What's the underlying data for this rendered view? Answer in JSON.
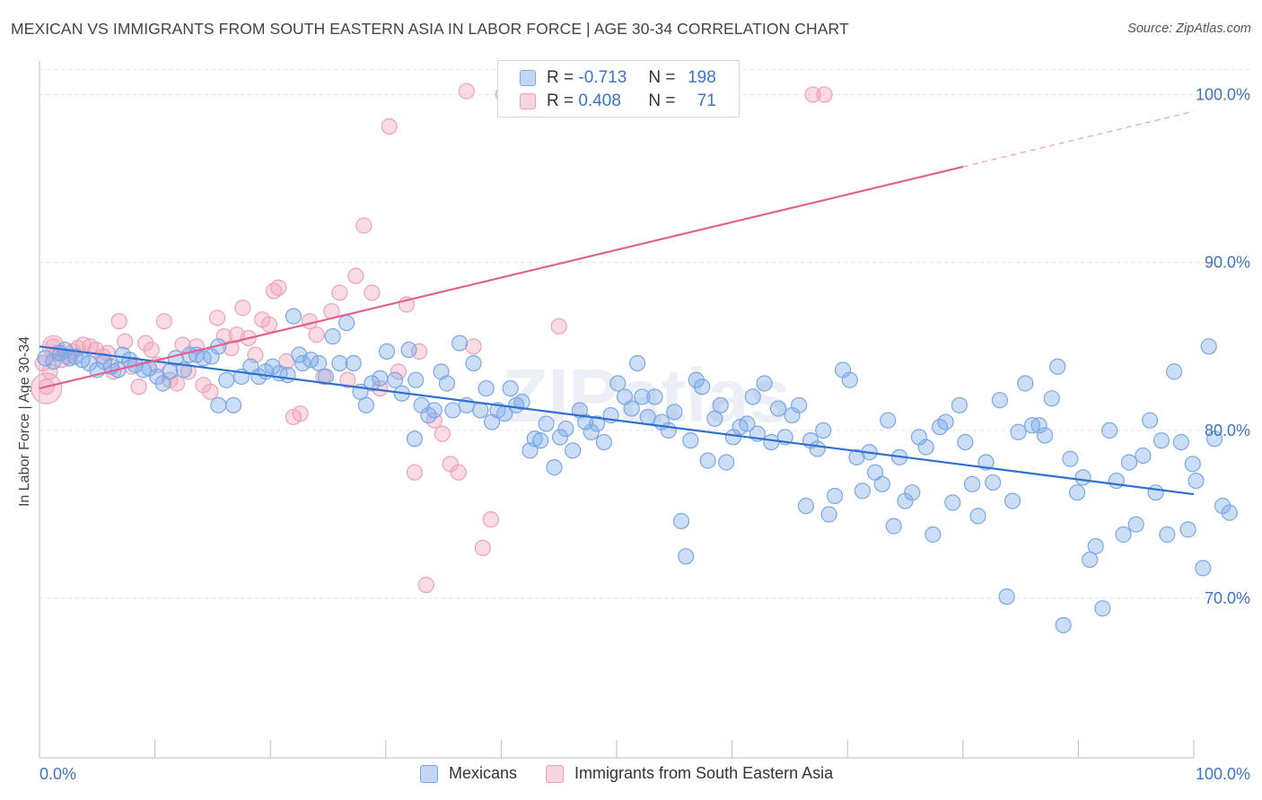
{
  "title": "MEXICAN VS IMMIGRANTS FROM SOUTH EASTERN ASIA IN LABOR FORCE | AGE 30-34 CORRELATION CHART",
  "source": "Source: ZipAtlas.com",
  "watermark": "ZIPatlas",
  "legend_top": {
    "rows": [
      {
        "r_label": "R =",
        "r_value": "-0.713",
        "n_label": "N =",
        "n_value": "198",
        "color": "#7aa7e8"
      },
      {
        "r_label": "R =",
        "r_value": "0.408",
        "n_label": "N =",
        "n_value": "71",
        "color": "#f0a0b8"
      }
    ]
  },
  "legend_bottom": [
    {
      "label": "Mexicans",
      "color": "#7aa7e8"
    },
    {
      "label": "Immigrants from South Eastern Asia",
      "color": "#f0a0b8"
    }
  ],
  "chart_data": {
    "type": "scatter",
    "title": "MEXICAN VS IMMIGRANTS FROM SOUTH EASTERN ASIA IN LABOR FORCE | AGE 30-34 CORRELATION CHART",
    "xlabel": "",
    "ylabel": "In Labor Force | Age 30-34",
    "xlim": [
      0,
      100
    ],
    "ylim": [
      60.5,
      102
    ],
    "x_tick_labels": [
      "0.0%",
      "100.0%"
    ],
    "y_ticks": [
      70,
      80,
      90,
      100
    ],
    "y_tick_labels": [
      "70.0%",
      "80.0%",
      "90.0%",
      "100.0%"
    ],
    "grid": true,
    "legend_position": "top-center",
    "series": [
      {
        "name": "Mexicans",
        "color": "#7aa7e8",
        "line_color": "#2f6fd0",
        "trend": {
          "x": [
            0,
            100
          ],
          "y": [
            85.0,
            76.2
          ]
        },
        "points": [
          [
            0.5,
            84.3
          ],
          [
            1.2,
            84.1
          ],
          [
            1.8,
            84.6
          ],
          [
            2.2,
            84.8
          ],
          [
            2.6,
            84.3
          ],
          [
            3.1,
            84.4
          ],
          [
            3.7,
            84.2
          ],
          [
            4.3,
            84.0
          ],
          [
            5.0,
            83.6
          ],
          [
            5.6,
            84.1
          ],
          [
            6.2,
            83.8
          ],
          [
            6.8,
            83.6
          ],
          [
            7.2,
            84.5
          ],
          [
            7.8,
            84.2
          ],
          [
            8.3,
            83.9
          ],
          [
            9.0,
            83.6
          ],
          [
            9.5,
            83.7
          ],
          [
            10.2,
            83.2
          ],
          [
            10.7,
            82.8
          ],
          [
            11.3,
            83.5
          ],
          [
            11.8,
            84.3
          ],
          [
            12.5,
            83.6
          ],
          [
            13.0,
            84.5
          ],
          [
            13.6,
            84.5
          ],
          [
            14.2,
            84.3
          ],
          [
            14.9,
            84.4
          ],
          [
            15.5,
            85.0
          ],
          [
            16.2,
            83.0
          ],
          [
            15.5,
            81.5
          ],
          [
            16.8,
            81.5
          ],
          [
            17.5,
            83.2
          ],
          [
            18.3,
            83.8
          ],
          [
            19.0,
            83.2
          ],
          [
            19.6,
            83.5
          ],
          [
            20.2,
            83.8
          ],
          [
            20.8,
            83.4
          ],
          [
            21.5,
            83.3
          ],
          [
            22.0,
            86.8
          ],
          [
            22.5,
            84.5
          ],
          [
            22.8,
            84.0
          ],
          [
            23.5,
            84.2
          ],
          [
            24.2,
            84.0
          ],
          [
            24.8,
            83.2
          ],
          [
            25.4,
            85.6
          ],
          [
            26.0,
            84.0
          ],
          [
            26.6,
            86.4
          ],
          [
            27.2,
            84.0
          ],
          [
            27.8,
            82.3
          ],
          [
            28.3,
            81.5
          ],
          [
            28.8,
            82.8
          ],
          [
            29.5,
            83.1
          ],
          [
            30.1,
            84.7
          ],
          [
            30.8,
            83.0
          ],
          [
            31.4,
            82.2
          ],
          [
            32.0,
            84.8
          ],
          [
            32.5,
            79.5
          ],
          [
            32.6,
            83.0
          ],
          [
            33.1,
            81.5
          ],
          [
            33.7,
            80.9
          ],
          [
            34.2,
            81.2
          ],
          [
            34.8,
            83.5
          ],
          [
            35.3,
            82.8
          ],
          [
            35.8,
            81.2
          ],
          [
            36.4,
            85.2
          ],
          [
            37.0,
            81.5
          ],
          [
            37.6,
            84.0
          ],
          [
            38.2,
            81.2
          ],
          [
            38.7,
            82.5
          ],
          [
            39.2,
            80.5
          ],
          [
            39.7,
            81.2
          ],
          [
            40.3,
            81.0
          ],
          [
            40.8,
            82.5
          ],
          [
            41.3,
            81.5
          ],
          [
            41.8,
            81.7
          ],
          [
            42.5,
            78.8
          ],
          [
            42.9,
            79.5
          ],
          [
            43.4,
            79.4
          ],
          [
            43.9,
            80.4
          ],
          [
            44.6,
            77.8
          ],
          [
            45.1,
            79.6
          ],
          [
            45.6,
            80.1
          ],
          [
            46.2,
            78.8
          ],
          [
            46.8,
            81.2
          ],
          [
            47.3,
            80.5
          ],
          [
            47.8,
            79.9
          ],
          [
            48.3,
            80.4
          ],
          [
            48.9,
            79.3
          ],
          [
            49.5,
            80.9
          ],
          [
            50.1,
            82.8
          ],
          [
            50.7,
            82.0
          ],
          [
            51.3,
            81.3
          ],
          [
            51.8,
            84.0
          ],
          [
            52.2,
            82.0
          ],
          [
            52.7,
            80.8
          ],
          [
            53.3,
            82.0
          ],
          [
            53.9,
            80.5
          ],
          [
            54.5,
            80.0
          ],
          [
            55.0,
            81.1
          ],
          [
            55.6,
            74.6
          ],
          [
            56.0,
            72.5
          ],
          [
            56.4,
            79.4
          ],
          [
            56.9,
            83.0
          ],
          [
            57.4,
            82.6
          ],
          [
            57.9,
            78.2
          ],
          [
            58.5,
            80.7
          ],
          [
            59.0,
            81.5
          ],
          [
            59.5,
            78.1
          ],
          [
            60.1,
            79.6
          ],
          [
            60.7,
            80.2
          ],
          [
            61.3,
            80.4
          ],
          [
            61.8,
            82.0
          ],
          [
            62.2,
            79.8
          ],
          [
            62.8,
            82.8
          ],
          [
            63.4,
            79.3
          ],
          [
            64.0,
            81.3
          ],
          [
            64.6,
            79.6
          ],
          [
            65.2,
            80.9
          ],
          [
            65.8,
            81.5
          ],
          [
            66.4,
            75.5
          ],
          [
            66.8,
            79.4
          ],
          [
            67.4,
            78.9
          ],
          [
            67.9,
            80.0
          ],
          [
            68.4,
            75.0
          ],
          [
            68.9,
            76.1
          ],
          [
            69.6,
            83.6
          ],
          [
            70.2,
            83.0
          ],
          [
            70.8,
            78.4
          ],
          [
            71.3,
            76.4
          ],
          [
            71.9,
            78.7
          ],
          [
            72.4,
            77.5
          ],
          [
            73.0,
            76.8
          ],
          [
            73.5,
            80.6
          ],
          [
            74.0,
            74.3
          ],
          [
            74.5,
            78.4
          ],
          [
            75.0,
            75.8
          ],
          [
            75.6,
            76.3
          ],
          [
            76.2,
            79.6
          ],
          [
            76.8,
            79.0
          ],
          [
            77.4,
            73.8
          ],
          [
            78.0,
            80.2
          ],
          [
            78.5,
            80.5
          ],
          [
            79.1,
            75.7
          ],
          [
            79.7,
            81.5
          ],
          [
            80.2,
            79.3
          ],
          [
            80.8,
            76.8
          ],
          [
            81.3,
            74.9
          ],
          [
            82.0,
            78.1
          ],
          [
            82.6,
            76.9
          ],
          [
            83.2,
            81.8
          ],
          [
            83.8,
            70.1
          ],
          [
            84.3,
            75.8
          ],
          [
            84.8,
            79.9
          ],
          [
            85.4,
            82.8
          ],
          [
            86.0,
            80.3
          ],
          [
            86.6,
            80.3
          ],
          [
            87.1,
            79.7
          ],
          [
            87.7,
            81.9
          ],
          [
            88.2,
            83.8
          ],
          [
            88.7,
            68.4
          ],
          [
            89.3,
            78.3
          ],
          [
            89.9,
            76.3
          ],
          [
            90.4,
            77.2
          ],
          [
            91.0,
            72.3
          ],
          [
            91.5,
            73.1
          ],
          [
            92.1,
            69.4
          ],
          [
            92.7,
            80.0
          ],
          [
            93.3,
            77.0
          ],
          [
            93.9,
            73.8
          ],
          [
            94.4,
            78.1
          ],
          [
            95.0,
            74.4
          ],
          [
            95.6,
            78.5
          ],
          [
            96.2,
            80.6
          ],
          [
            96.7,
            76.3
          ],
          [
            97.2,
            79.4
          ],
          [
            97.7,
            73.8
          ],
          [
            98.3,
            83.5
          ],
          [
            98.9,
            79.3
          ],
          [
            99.5,
            74.1
          ],
          [
            99.9,
            78.0
          ],
          [
            100.2,
            77.0
          ],
          [
            100.8,
            71.8
          ],
          [
            101.3,
            85.0
          ],
          [
            101.8,
            79.5
          ],
          [
            102.5,
            75.5
          ],
          [
            103.1,
            75.1
          ]
        ]
      },
      {
        "name": "Immigrants from South Eastern Asia",
        "color": "#f0a0b8",
        "line_color": "#e0628e",
        "trend": {
          "x": [
            0,
            100
          ],
          "y": [
            82.5,
            99.0
          ]
        },
        "points": [
          [
            0.3,
            84.0
          ],
          [
            0.6,
            82.6
          ],
          [
            0.9,
            83.5
          ],
          [
            1.2,
            85.0
          ],
          [
            1.5,
            84.6
          ],
          [
            1.9,
            84.2
          ],
          [
            2.4,
            84.4
          ],
          [
            2.9,
            84.7
          ],
          [
            3.3,
            84.9
          ],
          [
            3.8,
            85.1
          ],
          [
            4.4,
            85.0
          ],
          [
            4.9,
            84.8
          ],
          [
            5.5,
            84.4
          ],
          [
            5.9,
            84.6
          ],
          [
            6.4,
            83.5
          ],
          [
            6.9,
            86.5
          ],
          [
            7.4,
            85.3
          ],
          [
            8.0,
            83.8
          ],
          [
            8.6,
            82.6
          ],
          [
            9.2,
            85.2
          ],
          [
            9.7,
            84.8
          ],
          [
            10.2,
            83.9
          ],
          [
            10.8,
            86.5
          ],
          [
            11.3,
            83.0
          ],
          [
            11.9,
            82.8
          ],
          [
            12.4,
            85.1
          ],
          [
            12.9,
            83.5
          ],
          [
            13.6,
            85.0
          ],
          [
            14.2,
            82.7
          ],
          [
            14.8,
            82.3
          ],
          [
            15.4,
            86.7
          ],
          [
            16.0,
            85.6
          ],
          [
            16.6,
            84.9
          ],
          [
            17.1,
            85.7
          ],
          [
            17.6,
            87.3
          ],
          [
            18.1,
            85.5
          ],
          [
            18.7,
            84.5
          ],
          [
            19.3,
            86.6
          ],
          [
            19.9,
            86.3
          ],
          [
            20.3,
            88.3
          ],
          [
            20.7,
            88.5
          ],
          [
            21.4,
            84.1
          ],
          [
            22.0,
            80.8
          ],
          [
            22.6,
            81.0
          ],
          [
            23.4,
            86.5
          ],
          [
            24.0,
            85.7
          ],
          [
            24.6,
            83.2
          ],
          [
            25.3,
            87.1
          ],
          [
            26.0,
            88.2
          ],
          [
            26.7,
            83.0
          ],
          [
            27.4,
            89.2
          ],
          [
            28.1,
            92.2
          ],
          [
            28.8,
            88.2
          ],
          [
            29.5,
            82.5
          ],
          [
            30.3,
            98.1
          ],
          [
            31.1,
            83.5
          ],
          [
            31.8,
            87.5
          ],
          [
            32.5,
            77.5
          ],
          [
            32.9,
            84.7
          ],
          [
            33.5,
            70.8
          ],
          [
            34.2,
            80.6
          ],
          [
            34.9,
            79.8
          ],
          [
            35.6,
            78.0
          ],
          [
            36.3,
            77.5
          ],
          [
            37.0,
            100.2
          ],
          [
            37.6,
            85.0
          ],
          [
            38.4,
            73.0
          ],
          [
            39.1,
            74.7
          ],
          [
            40.2,
            100.0
          ],
          [
            44.0,
            100.0
          ],
          [
            45.0,
            86.2
          ],
          [
            67.0,
            100.0
          ],
          [
            68.0,
            100.0
          ]
        ]
      }
    ]
  }
}
